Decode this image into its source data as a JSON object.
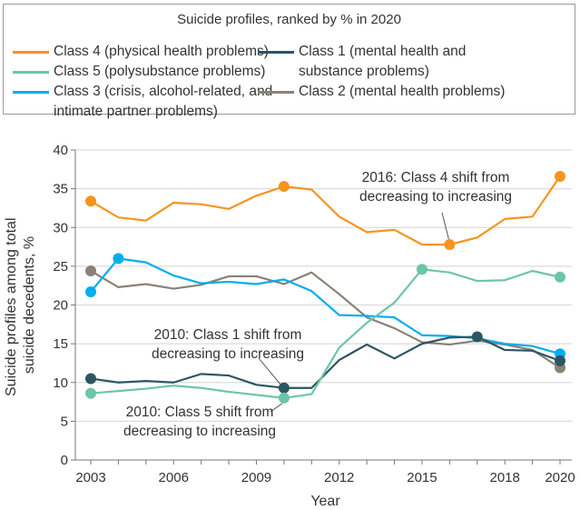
{
  "chart_data": {
    "type": "line",
    "title": "Suicide profiles, ranked by % in 2020",
    "xlabel": "Year",
    "ylabel_lines": [
      "Suicide profiles among total",
      "suicide decedents, %"
    ],
    "ylabel": "Suicide profiles among total suicide decedents, %",
    "x": [
      2003,
      2004,
      2005,
      2006,
      2007,
      2008,
      2009,
      2010,
      2011,
      2012,
      2013,
      2014,
      2015,
      2016,
      2017,
      2018,
      2019,
      2020
    ],
    "xlim": [
      2003,
      2020
    ],
    "ylim": [
      0,
      40
    ],
    "x_ticks": [
      2003,
      2004,
      2005,
      2006,
      2007,
      2008,
      2009,
      2010,
      2011,
      2012,
      2013,
      2014,
      2015,
      2016,
      2017,
      2018,
      2019,
      2020
    ],
    "x_tick_labels": [
      "2003",
      "2006",
      "2009",
      "2012",
      "2015",
      "2018",
      "2020"
    ],
    "y_ticks": [
      0,
      5,
      10,
      15,
      20,
      25,
      30,
      35,
      40
    ],
    "grid": "horizontal",
    "legend_placement": "top",
    "series": [
      {
        "name": "Class 4 (physical health problems)",
        "legend_lines": [
          "Class 4 (physical health problems)"
        ],
        "color": "#f7941d",
        "values": [
          33.4,
          31.3,
          30.9,
          33.2,
          33.0,
          32.4,
          34.1,
          35.3,
          34.9,
          31.4,
          29.4,
          29.7,
          27.8,
          27.8,
          28.7,
          31.1,
          31.4,
          36.6
        ],
        "markers": [
          2003,
          2010,
          2016,
          2020
        ]
      },
      {
        "name": "Class 5 (polysubstance problems)",
        "legend_lines": [
          "Class 5 (polysubstance problems)"
        ],
        "color": "#6cc5a8",
        "values": [
          8.6,
          8.9,
          9.2,
          9.6,
          9.3,
          8.8,
          8.4,
          8.0,
          8.5,
          14.5,
          17.7,
          20.3,
          24.6,
          24.2,
          23.1,
          23.2,
          24.4,
          23.6
        ],
        "markers": [
          2003,
          2010,
          2015,
          2020
        ]
      },
      {
        "name": "Class 3 (crisis, alcohol-related, and intimate partner problems)",
        "legend_lines": [
          "Class 3 (crisis, alcohol-related, and",
          "intimate partner problems)"
        ],
        "color": "#00aeef",
        "values": [
          21.7,
          26.0,
          25.5,
          23.8,
          22.8,
          23.0,
          22.7,
          23.3,
          21.8,
          18.7,
          18.6,
          18.4,
          16.1,
          16.0,
          15.7,
          15.0,
          14.7,
          13.7
        ],
        "markers": [
          2003,
          2004,
          2020
        ]
      },
      {
        "name": "Class 1 (mental health and substance problems)",
        "legend_lines": [
          "Class 1 (mental health and",
          "substance problems)"
        ],
        "color": "#2d5564",
        "values": [
          10.5,
          10.0,
          10.2,
          10.0,
          11.1,
          10.9,
          9.7,
          9.3,
          9.3,
          12.9,
          14.9,
          13.1,
          15.0,
          15.8,
          15.9,
          14.2,
          14.1,
          12.8
        ],
        "markers": [
          2003,
          2010,
          2017,
          2020
        ]
      },
      {
        "name": "Class 2 (mental health problems)",
        "legend_lines": [
          "Class 2 (mental health problems)"
        ],
        "color": "#8b8176",
        "values": [
          24.4,
          22.3,
          22.7,
          22.1,
          22.6,
          23.7,
          23.7,
          22.7,
          24.2,
          21.4,
          18.4,
          17.0,
          15.2,
          14.9,
          15.4,
          14.9,
          14.2,
          11.9
        ],
        "markers": [
          2003,
          2020
        ]
      }
    ],
    "annotations": [
      {
        "lines": [
          "2016: Class 4 shift from",
          "decreasing to increasing"
        ],
        "series": "Class 4",
        "x": 2016,
        "y": 27.8
      },
      {
        "lines": [
          "2010: Class 1 shift from",
          "decreasing to increasing"
        ],
        "series": "Class 1",
        "x": 2010,
        "y": 9.3
      },
      {
        "lines": [
          "2010: Class 5 shift from",
          "decreasing to increasing"
        ],
        "series": "Class 5",
        "x": 2010,
        "y": 8.0
      }
    ]
  }
}
